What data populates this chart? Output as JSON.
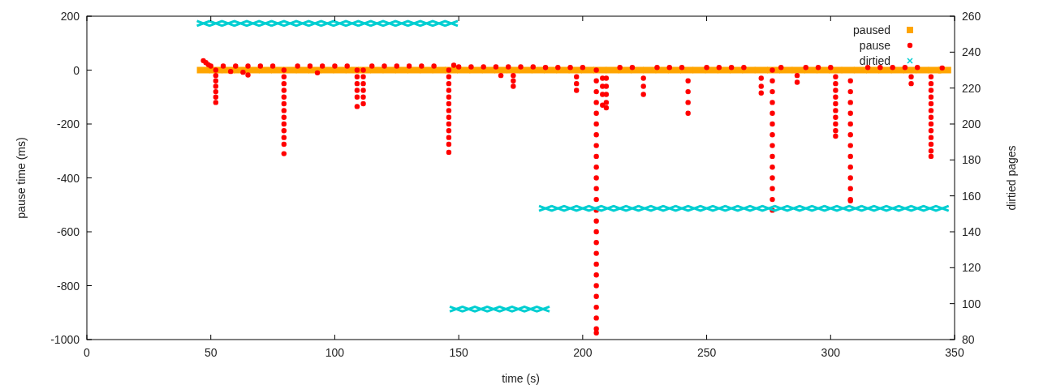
{
  "chart_data": {
    "type": "scatter",
    "xlabel": "time (s)",
    "ylabel": "pause time (ms)",
    "y2label": "dirtied pages",
    "xlim": [
      0,
      350
    ],
    "xticks": [
      0,
      50,
      100,
      150,
      200,
      250,
      300,
      350
    ],
    "ylim": [
      -1000,
      200
    ],
    "yticks": [
      -1000,
      -800,
      -600,
      -400,
      -200,
      0,
      200
    ],
    "y2lim": [
      80,
      260
    ],
    "y2ticks": [
      80,
      100,
      120,
      140,
      160,
      180,
      200,
      220,
      240,
      260
    ],
    "grid": false,
    "legend": "top right",
    "series": [
      {
        "name": "paused",
        "color": "#ffa500",
        "marker": "square",
        "x": [
          47,
          52,
          57,
          62,
          67,
          72,
          77,
          82,
          87,
          92,
          97,
          102,
          107,
          112,
          117,
          122,
          127,
          132,
          137,
          142,
          147,
          152,
          157,
          162,
          167,
          172,
          177,
          182,
          187,
          192,
          197,
          202,
          207,
          212,
          217,
          222,
          227,
          232,
          237,
          242,
          247,
          252,
          257,
          262,
          267,
          272,
          277,
          282,
          287,
          292,
          297,
          302,
          307,
          312,
          317,
          322,
          327,
          332,
          337,
          342,
          346
        ],
        "values": [
          0,
          0,
          0,
          0,
          0,
          0,
          0,
          0,
          0,
          0,
          0,
          0,
          0,
          0,
          0,
          0,
          0,
          0,
          0,
          0,
          0,
          0,
          0,
          0,
          0,
          0,
          0,
          0,
          0,
          0,
          0,
          0,
          0,
          0,
          0,
          0,
          0,
          0,
          0,
          0,
          0,
          0,
          0,
          0,
          0,
          0,
          0,
          0,
          0,
          0,
          0,
          0,
          0,
          0,
          0,
          0,
          0,
          0,
          0,
          0,
          0
        ]
      },
      {
        "name": "pause",
        "color": "#ff0000",
        "marker": "circle",
        "x": [
          47,
          48,
          49,
          50,
          55,
          60,
          65,
          70,
          75,
          85,
          90,
          95,
          100,
          105,
          115,
          120,
          125,
          130,
          135,
          140,
          148,
          150,
          155,
          160,
          165,
          170,
          175,
          180,
          185,
          190,
          195,
          200,
          215,
          220,
          230,
          235,
          240,
          250,
          255,
          260,
          265,
          280,
          290,
          295,
          300,
          315,
          320,
          325,
          330,
          335,
          345,
          58,
          63,
          65,
          93,
          52,
          52,
          52,
          52,
          52,
          52,
          52,
          79.5,
          79.5,
          79.5,
          79.5,
          79.5,
          79.5,
          79.5,
          79.5,
          79.5,
          79.5,
          79.5,
          79.5,
          79.5,
          109,
          109,
          109,
          109,
          109,
          109,
          111.5,
          111.5,
          111.5,
          111.5,
          111.5,
          111.5,
          146,
          146,
          146,
          146,
          146,
          146,
          146,
          146,
          146,
          146,
          146,
          146,
          146,
          167,
          172,
          172,
          172,
          197.5,
          197.5,
          197.5,
          205.5,
          205.5,
          205.5,
          205.5,
          205.5,
          205.5,
          205.5,
          205.5,
          205.5,
          205.5,
          205.5,
          205.5,
          205.5,
          205.5,
          205.5,
          205.5,
          205.5,
          205.5,
          205.5,
          205.5,
          205.5,
          205.5,
          205.5,
          205.5,
          205.5,
          205.5,
          208,
          208,
          208,
          208,
          209.5,
          209.5,
          209.5,
          209.5,
          209.5,
          224.5,
          224.5,
          224.5,
          242.5,
          242.5,
          242.5,
          242.5,
          272,
          272,
          272,
          276.5,
          276.5,
          276.5,
          276.5,
          276.5,
          276.5,
          276.5,
          276.5,
          276.5,
          276.5,
          276.5,
          276.5,
          276.5,
          276.5,
          286.5,
          286.5,
          302,
          302,
          302,
          302,
          302,
          302,
          302,
          302,
          302,
          302,
          308,
          308,
          308,
          308,
          308,
          308,
          308,
          308,
          308,
          308,
          308,
          308,
          308,
          332.5,
          332.5,
          340.5,
          340.5,
          340.5,
          340.5,
          340.5,
          340.5,
          340.5,
          340.5,
          340.5,
          340.5,
          340.5,
          340.5,
          340.5
        ],
        "values": [
          35,
          28,
          20,
          15,
          15,
          15,
          15,
          15,
          15,
          15,
          15,
          15,
          15,
          15,
          15,
          15,
          15,
          15,
          15,
          15,
          18,
          12,
          12,
          12,
          12,
          12,
          12,
          12,
          10,
          10,
          10,
          10,
          10,
          10,
          10,
          10,
          10,
          10,
          10,
          10,
          10,
          10,
          10,
          10,
          10,
          10,
          10,
          10,
          10,
          10,
          8,
          -5,
          -8,
          -18,
          -10,
          0,
          -20,
          -40,
          -60,
          -80,
          -100,
          -120,
          0,
          -25,
          -50,
          -75,
          -100,
          -125,
          -150,
          -175,
          -200,
          -225,
          -250,
          -275,
          -310,
          0,
          -25,
          -50,
          -75,
          -100,
          -135,
          0,
          -25,
          -50,
          -75,
          -100,
          -125,
          0,
          -25,
          -50,
          -75,
          -100,
          -125,
          -150,
          -175,
          -200,
          -225,
          -250,
          -275,
          -305,
          -20,
          -20,
          -40,
          -60,
          -25,
          -50,
          -75,
          0,
          -40,
          -80,
          -120,
          -160,
          -200,
          -240,
          -280,
          -320,
          -360,
          -400,
          -440,
          -480,
          -520,
          -560,
          -600,
          -640,
          -680,
          -720,
          -760,
          -800,
          -840,
          -880,
          -920,
          -960,
          -975,
          -30,
          -60,
          -90,
          -130,
          -30,
          -60,
          -90,
          -120,
          -140,
          -30,
          -60,
          -90,
          -40,
          -80,
          -120,
          -160,
          -30,
          -60,
          -85,
          0,
          -40,
          -80,
          -120,
          -160,
          -200,
          -240,
          -280,
          -320,
          -360,
          -400,
          -440,
          -480,
          -520,
          -20,
          -45,
          -25,
          -50,
          -75,
          -100,
          -125,
          -150,
          -175,
          -200,
          -225,
          -245,
          -40,
          -80,
          -120,
          -160,
          -200,
          -240,
          -280,
          -320,
          -360,
          -400,
          -440,
          -480,
          -485,
          -25,
          -50,
          -25,
          -50,
          -75,
          -100,
          -125,
          -150,
          -175,
          -200,
          -225,
          -250,
          -275,
          -300,
          -320
        ]
      },
      {
        "name": "dirtied",
        "color": "#00ced1",
        "marker": "cross",
        "axis": "y2",
        "x": [
          47,
          52,
          57,
          62,
          67,
          72,
          77,
          82,
          87,
          92,
          97,
          102,
          107,
          112,
          117,
          122,
          127,
          132,
          137,
          142,
          147,
          149,
          154,
          159,
          164,
          169,
          174,
          179,
          184,
          185,
          190,
          195,
          200,
          205,
          210,
          215,
          220,
          225,
          230,
          235,
          240,
          245,
          250,
          255,
          260,
          265,
          270,
          275,
          280,
          285,
          290,
          295,
          300,
          305,
          310,
          315,
          320,
          325,
          330,
          335,
          340,
          345
        ],
        "values": [
          256,
          256,
          256,
          256,
          256,
          256,
          256,
          256,
          256,
          256,
          256,
          256,
          256,
          256,
          256,
          256,
          256,
          256,
          256,
          256,
          256,
          97,
          97,
          97,
          97,
          97,
          97,
          97,
          97,
          153,
          153,
          153,
          153,
          153,
          153,
          153,
          153,
          153,
          153,
          153,
          153,
          153,
          153,
          153,
          153,
          153,
          153,
          153,
          153,
          153,
          153,
          153,
          153,
          153,
          153,
          153,
          153,
          153,
          153,
          153,
          153,
          153
        ]
      }
    ]
  }
}
